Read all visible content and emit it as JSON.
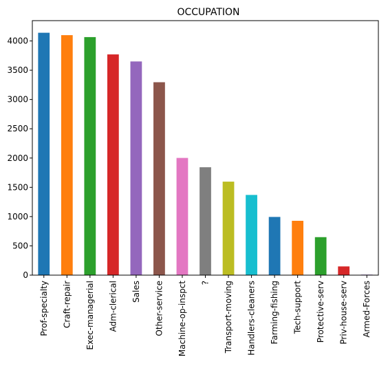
{
  "chart_data": {
    "type": "bar",
    "title": "OCCUPATION",
    "xlabel": "",
    "ylabel": "",
    "categories": [
      "Prof-specialty",
      "Craft-repair",
      "Exec-managerial",
      "Adm-clerical",
      "Sales",
      "Other-service",
      "Machine-op-inspct",
      "?",
      "Transport-moving",
      "Handlers-cleaners",
      "Farming-fishing",
      "Tech-support",
      "Protective-serv",
      "Priv-house-serv",
      "Armed-Forces"
    ],
    "values": [
      4140,
      4099,
      4066,
      3770,
      3650,
      3295,
      2002,
      1843,
      1597,
      1370,
      994,
      928,
      649,
      149,
      9
    ],
    "colors": [
      "#1f77b4",
      "#ff7f0e",
      "#2ca02c",
      "#d62728",
      "#9467bd",
      "#8c564b",
      "#e377c2",
      "#7f7f7f",
      "#bcbd22",
      "#17becf",
      "#1f77b4",
      "#ff7f0e",
      "#2ca02c",
      "#d62728",
      "#9467bd"
    ],
    "ylim": [
      0,
      4347
    ],
    "yticks": [
      0,
      500,
      1000,
      1500,
      2000,
      2500,
      3000,
      3500,
      4000
    ],
    "grid": false,
    "legend": "none"
  }
}
